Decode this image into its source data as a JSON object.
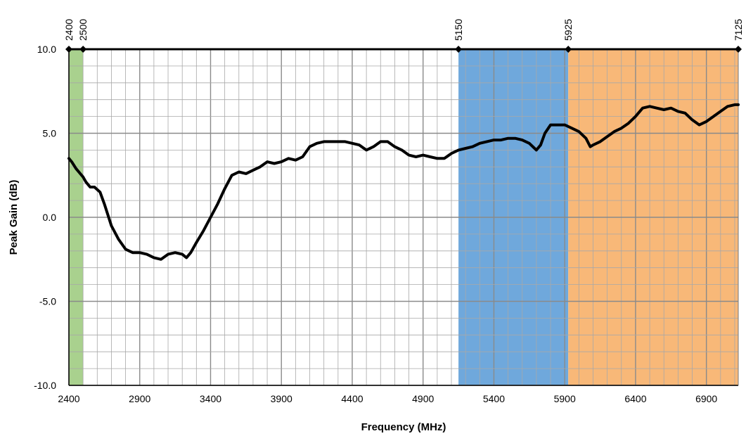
{
  "chart_data": {
    "type": "line",
    "title": "",
    "xlabel": "Frequency (MHz)",
    "ylabel": "Peak Gain (dB)",
    "xlim": [
      2400,
      7125
    ],
    "ylim": [
      -10,
      10
    ],
    "grid": true,
    "x_ticks": [
      2400,
      2900,
      3400,
      3900,
      4400,
      4900,
      5400,
      5900,
      6400,
      6900
    ],
    "x_tick_labels": [
      "2400",
      "2900",
      "3400",
      "3900",
      "4400",
      "4900",
      "5400",
      "5900",
      "6400",
      "6900"
    ],
    "y_ticks": [
      10,
      5,
      0,
      -5,
      -10
    ],
    "y_tick_labels": [
      "10.0",
      "5.0",
      "0.0",
      "-5.0",
      "-10.0"
    ],
    "top_markers": [
      {
        "value": 2400,
        "label": "2400"
      },
      {
        "value": 2500,
        "label": "2500"
      },
      {
        "value": 5150,
        "label": "5150"
      },
      {
        "value": 5925,
        "label": "5925"
      },
      {
        "value": 7125,
        "label": "7125"
      }
    ],
    "bands": [
      {
        "from": 2400,
        "to": 2500,
        "color": "#a9d18e"
      },
      {
        "from": 5150,
        "to": 5925,
        "color": "#6fa8dc"
      },
      {
        "from": 5925,
        "to": 7125,
        "color": "#f8b878"
      }
    ],
    "series": [
      {
        "color": "#000000",
        "x": [
          2400,
          2420,
          2450,
          2480,
          2500,
          2520,
          2550,
          2580,
          2620,
          2650,
          2700,
          2750,
          2800,
          2850,
          2900,
          2950,
          3000,
          3050,
          3100,
          3150,
          3200,
          3230,
          3260,
          3300,
          3350,
          3400,
          3450,
          3500,
          3550,
          3600,
          3650,
          3700,
          3750,
          3800,
          3850,
          3900,
          3950,
          4000,
          4050,
          4100,
          4150,
          4200,
          4250,
          4300,
          4350,
          4400,
          4450,
          4500,
          4550,
          4600,
          4650,
          4700,
          4750,
          4800,
          4850,
          4900,
          4950,
          5000,
          5050,
          5100,
          5150,
          5200,
          5250,
          5300,
          5350,
          5400,
          5450,
          5500,
          5550,
          5600,
          5650,
          5700,
          5730,
          5760,
          5800,
          5850,
          5900,
          5950,
          6000,
          6050,
          6080,
          6100,
          6150,
          6200,
          6250,
          6300,
          6350,
          6400,
          6450,
          6500,
          6550,
          6600,
          6650,
          6700,
          6750,
          6800,
          6850,
          6900,
          6950,
          7000,
          7050,
          7100,
          7125
        ],
        "y": [
          3.5,
          3.3,
          2.9,
          2.6,
          2.4,
          2.1,
          1.8,
          1.8,
          1.5,
          0.8,
          -0.5,
          -1.3,
          -1.9,
          -2.1,
          -2.1,
          -2.2,
          -2.4,
          -2.5,
          -2.2,
          -2.1,
          -2.2,
          -2.4,
          -2.1,
          -1.5,
          -0.8,
          0.0,
          0.8,
          1.7,
          2.5,
          2.7,
          2.6,
          2.8,
          3.0,
          3.3,
          3.2,
          3.3,
          3.5,
          3.4,
          3.6,
          4.2,
          4.4,
          4.5,
          4.5,
          4.5,
          4.5,
          4.4,
          4.3,
          4.0,
          4.2,
          4.5,
          4.5,
          4.2,
          4.0,
          3.7,
          3.6,
          3.7,
          3.6,
          3.5,
          3.5,
          3.8,
          4.0,
          4.1,
          4.2,
          4.4,
          4.5,
          4.6,
          4.6,
          4.7,
          4.7,
          4.6,
          4.4,
          4.0,
          4.3,
          5.0,
          5.5,
          5.5,
          5.5,
          5.3,
          5.1,
          4.7,
          4.2,
          4.3,
          4.5,
          4.8,
          5.1,
          5.3,
          5.6,
          6.0,
          6.5,
          6.6,
          6.5,
          6.4,
          6.5,
          6.3,
          6.2,
          5.8,
          5.5,
          5.7,
          6.0,
          6.3,
          6.6,
          6.7,
          6.7
        ]
      }
    ]
  }
}
